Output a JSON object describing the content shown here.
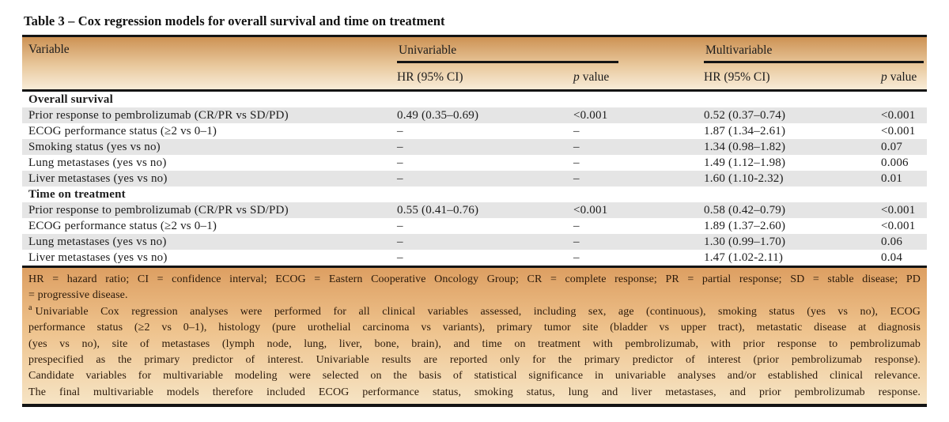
{
  "title": "Table 3 – Cox regression models for overall survival and time on treatment",
  "header": {
    "variable": "Variable",
    "groups": [
      {
        "label": "Univariable",
        "hr": "HR (95% CI)",
        "p_italic": "p",
        "p_rest": "value"
      },
      {
        "label": "Multivariable",
        "hr": "HR (95% CI)",
        "p_italic": "p",
        "p_rest": "value"
      }
    ]
  },
  "sections": [
    {
      "label": "Overall survival",
      "rows": [
        {
          "variable": "Prior response to pembrolizumab (CR/PR vs SD/PD)",
          "u_hr": "0.49 (0.35–0.69)",
          "u_p": "<0.001",
          "m_hr": "0.52 (0.37–0.74)",
          "m_p": "<0.001"
        },
        {
          "variable": "ECOG performance status (≥2 vs 0–1)",
          "u_hr": "–",
          "u_p": "–",
          "m_hr": "1.87 (1.34–2.61)",
          "m_p": "<0.001"
        },
        {
          "variable": "Smoking status (yes vs no)",
          "u_hr": "–",
          "u_p": "–",
          "m_hr": "1.34 (0.98–1.82)",
          "m_p": "0.07"
        },
        {
          "variable": "Lung metastases (yes vs no)",
          "u_hr": "–",
          "u_p": "–",
          "m_hr": "1.49 (1.12–1.98)",
          "m_p": "0.006"
        },
        {
          "variable": "Liver metastases (yes vs no)",
          "u_hr": "–",
          "u_p": "–",
          "m_hr": "1.60 (1.10-2.32)",
          "m_p": "0.01"
        }
      ]
    },
    {
      "label": "Time on treatment",
      "rows": [
        {
          "variable": "Prior response to pembrolizumab (CR/PR vs SD/PD)",
          "u_hr": "0.55 (0.41–0.76)",
          "u_p": "<0.001",
          "m_hr": "0.58 (0.42–0.79)",
          "m_p": "<0.001"
        },
        {
          "variable": "ECOG performance status (≥2 vs 0–1)",
          "u_hr": "–",
          "u_p": "–",
          "m_hr": "1.89 (1.37–2.60)",
          "m_p": "<0.001"
        },
        {
          "variable": "Lung metastases (yes vs no)",
          "u_hr": "–",
          "u_p": "–",
          "m_hr": "1.30 (0.99–1.70)",
          "m_p": "0.06"
        },
        {
          "variable": "Liver metastases (yes vs no)",
          "u_hr": "–",
          "u_p": "–",
          "m_hr": "1.47 (1.02-2.11)",
          "m_p": "0.04"
        }
      ]
    }
  ],
  "footnotes": {
    "marker_a": "a",
    "lines": [
      "HR = hazard ratio; CI = confidence interval; ECOG = Eastern Cooperative Oncology Group; CR = complete response; PR = partial response; SD = stable disease; PD",
      "= progressive disease.",
      "Univariable Cox regression analyses were performed for all clinical variables assessed, including sex, age (continuous), smoking status (yes vs no), ECOG",
      "performance status (≥2 vs 0–1), histology (pure urothelial carcinoma vs variants), primary tumor site (bladder vs upper tract), metastatic disease at diagnosis",
      "(yes vs no), site of metastases (lymph node, lung, liver, bone, brain), and time on treatment with pembrolizumab, with prior response to pembrolizumab",
      "prespecified as the primary predictor of interest. Univariable results are reported only for the primary predictor of interest (prior pembrolizumab response).",
      "Candidate variables for multivariable modeling were selected on the basis of statistical significance in univariable analyses and/or established clinical relevance.",
      "The final multivariable models therefore included ECOG performance status, smoking status, lung and liver metastases, and prior pembrolizumab response."
    ]
  },
  "colors": {
    "header_gradient_top": "#cd9254",
    "header_gradient_bottom": "#f8ecd8",
    "footer_gradient_top": "#dd9f62",
    "footer_gradient_bottom": "#f6e4c4",
    "row_shade": "#e5e5e5",
    "rule": "#141414",
    "footnote_text": "#2a190a"
  }
}
